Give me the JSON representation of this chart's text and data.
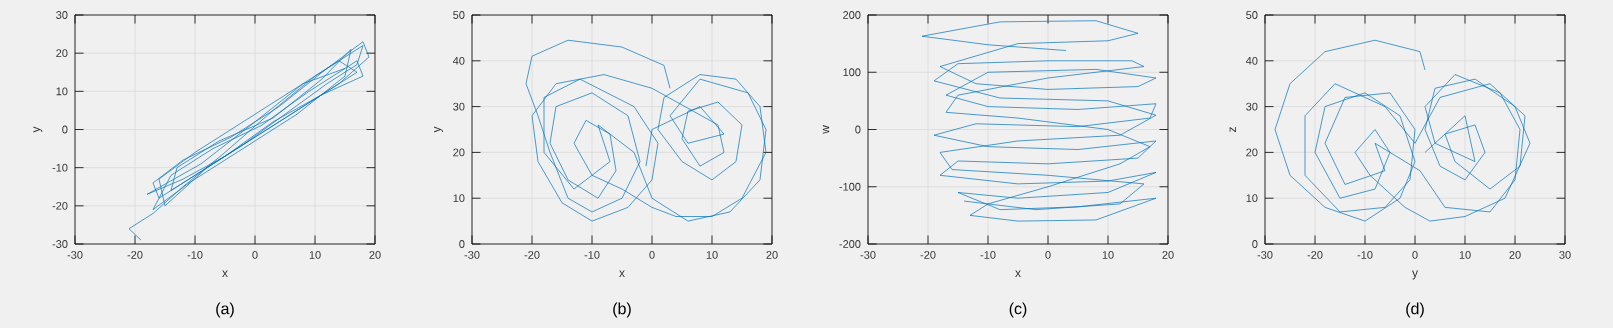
{
  "chart_data": [
    {
      "type": "line",
      "xlabel": "x",
      "ylabel": "y",
      "annotations": [
        "(a)"
      ],
      "grid": true,
      "xlim": [
        -30,
        20
      ],
      "ylim": [
        -30,
        30
      ],
      "xticks": [
        -30,
        -20,
        -10,
        0,
        10,
        20
      ],
      "yticks": [
        -30,
        -20,
        -10,
        0,
        10,
        20,
        30
      ],
      "x": [
        -19,
        -21,
        -17,
        -12,
        -5,
        3,
        10,
        16,
        18,
        17,
        12,
        5,
        -2,
        -10,
        -16,
        -17,
        -12,
        -4,
        4,
        12,
        18,
        19,
        14,
        8,
        0,
        -8,
        -15,
        -16,
        -10,
        -2,
        6,
        14,
        17,
        10,
        2,
        -6,
        -14,
        -13,
        -6,
        3,
        11,
        16,
        15,
        7,
        -3,
        -11,
        -17,
        -14,
        -7,
        1,
        9,
        17,
        18,
        11,
        3,
        -5,
        -12,
        -18,
        -9,
        0,
        8,
        15
      ],
      "series": [
        {
          "color": "#0072bd",
          "values": [
            -29,
            -26,
            -22,
            -15,
            -6,
            5,
            14,
            20,
            22,
            17,
            12,
            4,
            -4,
            -12,
            -18,
            -14,
            -8,
            -2,
            6,
            16,
            23,
            19,
            12,
            6,
            -2,
            -10,
            -20,
            -13,
            -6,
            2,
            10,
            18,
            15,
            8,
            0,
            -8,
            -16,
            -10,
            -3,
            3,
            13,
            21,
            14,
            4,
            -6,
            -14,
            -21,
            -12,
            -5,
            1,
            10,
            18,
            14,
            9,
            2,
            -7,
            -13,
            -17,
            -9,
            2,
            12,
            16
          ]
        }
      ]
    },
    {
      "type": "line",
      "xlabel": "x",
      "ylabel": "y",
      "annotations": [
        "(b)"
      ],
      "grid": true,
      "xlim": [
        -30,
        20
      ],
      "ylim": [
        0,
        50
      ],
      "xticks": [
        -30,
        -20,
        -10,
        0,
        10,
        20
      ],
      "yticks": [
        0,
        10,
        20,
        30,
        40,
        50
      ],
      "x": [
        3,
        2,
        -5,
        -14,
        -20,
        -21,
        -19,
        -17,
        -14,
        -10,
        -5,
        -2,
        -4,
        -10,
        -16,
        -17,
        -14,
        -9,
        -6,
        -7,
        -11,
        -13,
        -10,
        -5,
        0,
        4,
        10,
        15,
        19,
        18,
        14,
        8,
        2,
        1,
        5,
        10,
        14,
        15,
        11,
        6,
        5,
        8,
        12,
        11,
        0,
        -8,
        -16,
        -20,
        -19,
        -15,
        -10,
        -4,
        0,
        1,
        -3,
        -12,
        -18,
        -18,
        -13,
        -7,
        -9,
        -3,
        0,
        6,
        13,
        18,
        19,
        16,
        8,
        3,
        6,
        12,
        8,
        0,
        -1
      ],
      "series": [
        {
          "color": "#0072bd",
          "values": [
            34,
            39,
            43,
            44.5,
            41,
            35,
            28,
            20,
            10,
            7,
            10,
            18,
            28,
            33,
            30,
            22,
            14,
            10,
            16,
            24,
            27,
            22,
            15,
            12,
            8,
            6,
            6,
            10,
            20,
            30,
            36,
            37,
            32,
            25,
            18,
            14,
            18,
            26,
            31,
            29,
            23,
            17,
            20,
            26,
            34,
            37,
            35,
            28,
            18,
            9,
            5,
            8,
            14,
            22,
            30,
            36,
            32,
            20,
            12,
            18,
            26,
            20,
            10,
            5,
            7,
            14,
            25,
            33,
            36,
            28,
            22,
            24,
            30,
            25,
            17
          ]
        }
      ]
    },
    {
      "type": "line",
      "xlabel": "x",
      "ylabel": "w",
      "annotations": [
        "(c)"
      ],
      "grid": true,
      "xlim": [
        -30,
        20
      ],
      "ylim": [
        -200,
        200
      ],
      "xticks": [
        -30,
        -20,
        -10,
        0,
        10,
        20
      ],
      "yticks": [
        -200,
        -100,
        0,
        100,
        200
      ],
      "x": [
        3,
        -10,
        -21,
        -8,
        8,
        15,
        10,
        -5,
        -18,
        -12,
        0,
        15,
        18,
        8,
        -10,
        -17,
        -10,
        5,
        18,
        17,
        5,
        -12,
        -19,
        -10,
        5,
        18,
        15,
        0,
        -15,
        -18,
        -5,
        10,
        18,
        10,
        -5,
        -15,
        -8,
        5,
        18,
        8,
        -5,
        -13,
        -10,
        0,
        12,
        17,
        10,
        -5,
        -17,
        -15,
        0,
        16,
        14,
        0,
        -15,
        -19,
        -8,
        10,
        18,
        12,
        -5,
        -18,
        -16,
        0,
        16,
        12,
        -2,
        -14
      ],
      "series": [
        {
          "color": "#0072bd",
          "values": [
            138,
            148,
            163,
            188,
            190,
            168,
            155,
            150,
            110,
            80,
            70,
            75,
            90,
            105,
            100,
            60,
            40,
            35,
            45,
            20,
            5,
            10,
            -10,
            -30,
            -35,
            -20,
            -50,
            -60,
            -55,
            -80,
            -95,
            -90,
            -75,
            -110,
            -120,
            -110,
            -140,
            -135,
            -120,
            -158,
            -160,
            -150,
            -130,
            -100,
            -60,
            -30,
            0,
            20,
            30,
            60,
            90,
            110,
            120,
            120,
            115,
            85,
            55,
            50,
            25,
            -10,
            -20,
            -40,
            -70,
            -80,
            -95,
            -130,
            -140,
            -125
          ]
        }
      ]
    },
    {
      "type": "line",
      "xlabel": "y",
      "ylabel": "z",
      "annotations": [
        "(d)"
      ],
      "grid": true,
      "xlim": [
        -30,
        30
      ],
      "ylim": [
        0,
        50
      ],
      "xticks": [
        -30,
        -20,
        -10,
        0,
        10,
        20,
        30
      ],
      "yticks": [
        0,
        10,
        20,
        30,
        40,
        50
      ],
      "x": [
        2,
        1,
        -8,
        -18,
        -25,
        -28,
        -25,
        -18,
        -10,
        -3,
        0,
        -3,
        -10,
        -18,
        -20,
        -15,
        -8,
        -5,
        -8,
        -12,
        -9,
        -2,
        3,
        10,
        18,
        23,
        20,
        12,
        4,
        2,
        5,
        10,
        14,
        12,
        6,
        8,
        15,
        21,
        22,
        15,
        5,
        0,
        -6,
        -16,
        -22,
        -22,
        -15,
        -6,
        -1,
        0,
        -5,
        -14,
        -18,
        -14,
        -6,
        -8,
        1,
        6,
        15,
        20,
        21,
        17,
        8,
        2,
        4,
        12,
        10,
        2
      ],
      "series": [
        {
          "color": "#0072bd",
          "values": [
            38,
            42,
            44.5,
            42,
            35,
            25,
            15,
            8,
            5,
            10,
            18,
            28,
            33,
            30,
            20,
            10,
            12,
            20,
            25,
            20,
            15,
            8,
            5,
            6,
            10,
            22,
            30,
            36,
            34,
            25,
            17,
            14,
            20,
            26,
            24,
            18,
            12,
            17,
            28,
            35,
            32,
            22,
            30,
            35,
            28,
            15,
            7,
            8,
            14,
            25,
            33,
            32,
            22,
            13,
            16,
            22,
            16,
            8,
            7,
            14,
            25,
            33,
            37,
            30,
            22,
            18,
            28,
            20
          ]
        }
      ]
    }
  ]
}
